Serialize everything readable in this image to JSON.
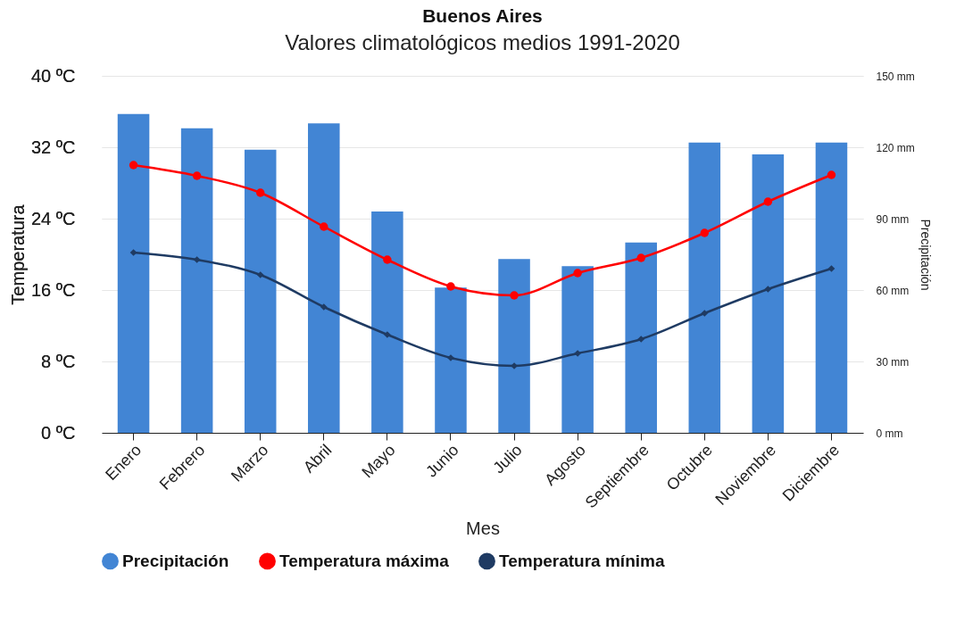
{
  "chart_data": {
    "type": "line",
    "title": "Buenos Aires",
    "subtitle": "Valores climatológicos medios 1991-2020",
    "xlabel": "Mes",
    "ylabel": "Temperatura",
    "y2label": "Precipitación",
    "categories": [
      "Enero",
      "Febrero",
      "Marzo",
      "Abril",
      "Mayo",
      "Junio",
      "Julio",
      "Agosto",
      "Septiembre",
      "Octubre",
      "Noviembre",
      "Diciembre"
    ],
    "series": [
      {
        "name": "Precipitación",
        "type": "bar",
        "axis": "y2",
        "color": "#4285d4",
        "values": [
          134,
          128,
          119,
          130,
          93,
          61,
          73,
          70,
          80,
          122,
          117,
          122
        ]
      },
      {
        "name": "Temperatura máxima",
        "marker": "circle",
        "color": "#ff0000",
        "values": [
          30.0,
          28.8,
          26.9,
          23.1,
          19.4,
          16.4,
          15.4,
          17.9,
          19.6,
          22.4,
          25.9,
          28.9
        ]
      },
      {
        "name": "Temperatura mínima",
        "marker": "diamond",
        "color": "#1f3b63",
        "values": [
          20.2,
          19.4,
          17.7,
          14.1,
          11.0,
          8.4,
          7.5,
          8.9,
          10.5,
          13.4,
          16.1,
          18.4
        ]
      }
    ],
    "ylim": [
      0,
      40
    ],
    "yticks": [
      {
        "value": 0,
        "label": "0 ºC"
      },
      {
        "value": 8,
        "label": "8 ºC"
      },
      {
        "value": 16,
        "label": "16 ºC"
      },
      {
        "value": 24,
        "label": "24 ºC"
      },
      {
        "value": 32,
        "label": "32 ºC"
      },
      {
        "value": 40,
        "label": "40 ºC"
      }
    ],
    "y2lim": [
      0,
      150
    ],
    "y2ticks": [
      {
        "value": 0,
        "label": "0 mm"
      },
      {
        "value": 30,
        "label": "30 mm"
      },
      {
        "value": 60,
        "label": "60 mm"
      },
      {
        "value": 90,
        "label": "90 mm"
      },
      {
        "value": 120,
        "label": "120 mm"
      },
      {
        "value": 150,
        "label": "150 mm"
      }
    ],
    "grid": "y",
    "legend": "bottom",
    "line_style": "solid"
  }
}
